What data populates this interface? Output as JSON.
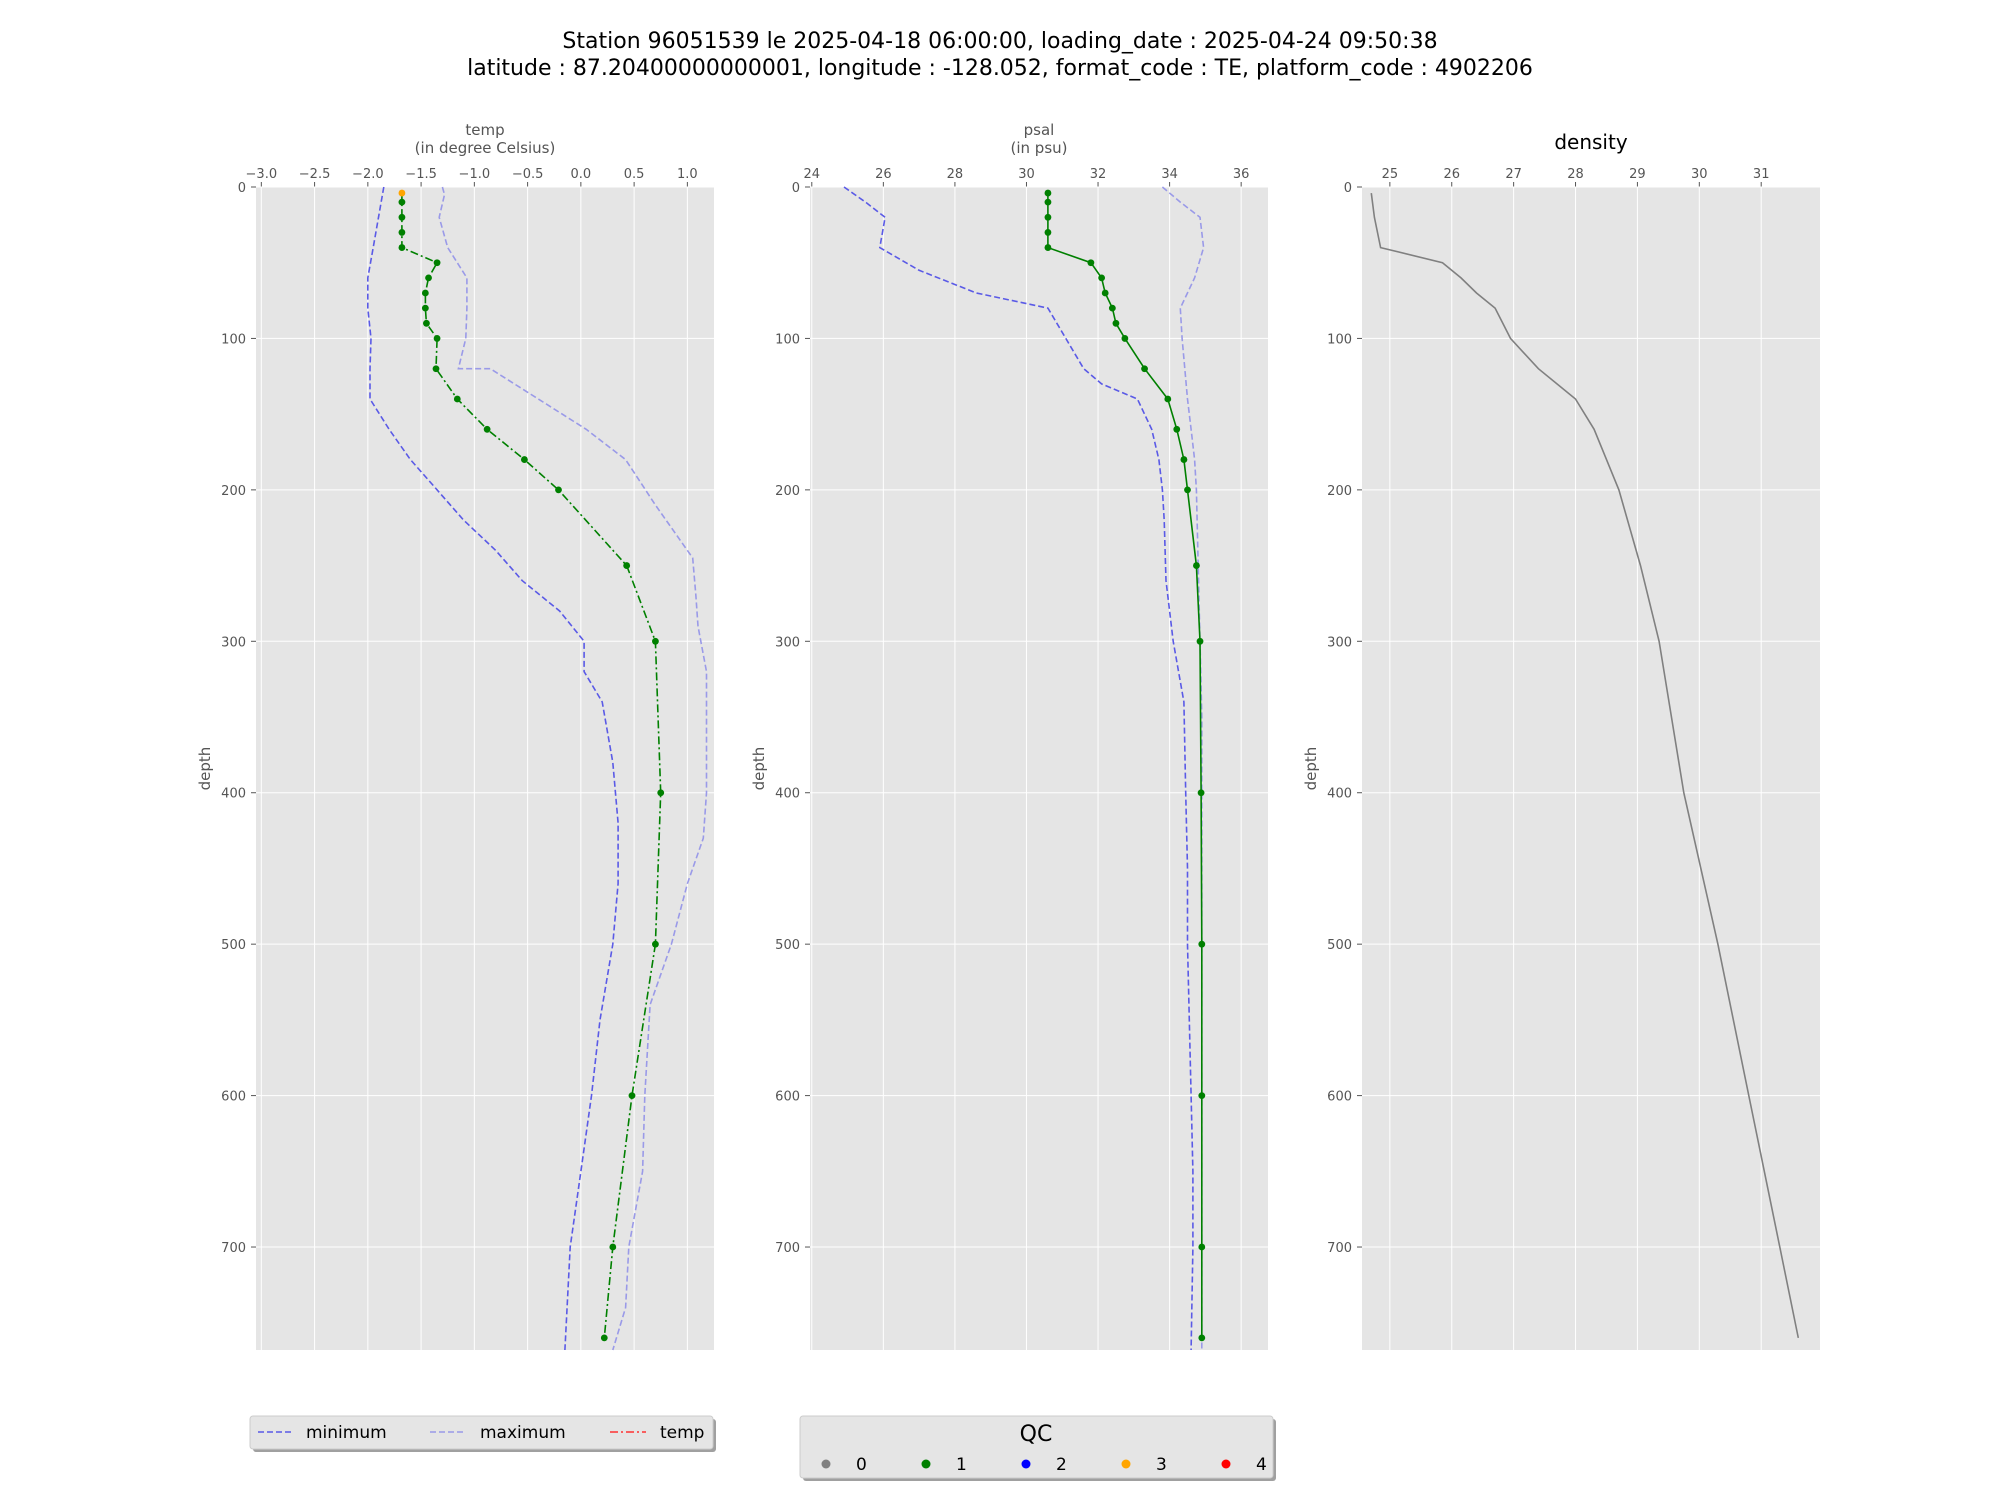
{
  "title": {
    "line1": "Station 96051539 le 2025-04-18 06:00:00, loading_date : 2025-04-24 09:50:38",
    "line2": "latitude : 87.20400000000001, longitude : -128.052, format_code : TE, platform_code : 4902206"
  },
  "colors": {
    "minimum": "#5a5ae6",
    "maximum": "#9a9ae8",
    "qc_line": "#008000",
    "density": "#808080",
    "panel_bg": "#e5e5e5",
    "grid": "#ffffff",
    "qc0": "#808080",
    "qc1": "#008000",
    "qc2": "#0000ff",
    "qc3": "#ffa500",
    "qc4": "#ff0000",
    "legend_temp": "#ff3333"
  },
  "chart_data": [
    {
      "type": "line",
      "id": "temp",
      "title": "",
      "xlabel": "temp",
      "xlabel_unit": "(in degree Celsius)",
      "ylabel": "depth",
      "xlim": [
        -3.05,
        1.25
      ],
      "ylim": [
        0,
        768
      ],
      "y_inverted": true,
      "x_axis_position": "top",
      "xticks": [
        -3.0,
        -2.5,
        -2.0,
        -1.5,
        -1.0,
        -0.5,
        0.0,
        0.5,
        1.0
      ],
      "xtick_labels": [
        "−3.0",
        "−2.5",
        "−2.0",
        "−1.5",
        "−1.0",
        "−0.5",
        "0.0",
        "0.5",
        "1.0"
      ],
      "yticks": [
        0,
        100,
        200,
        300,
        400,
        500,
        600,
        700
      ],
      "ytick_labels": [
        "0",
        "100",
        "200",
        "300",
        "400",
        "500",
        "600",
        "700"
      ],
      "grid": true,
      "series": [
        {
          "name": "minimum",
          "style": "dashed",
          "x": [
            -1.85,
            -1.9,
            -1.95,
            -2.0,
            -2.0,
            -1.97,
            -1.98,
            -1.98,
            -1.8,
            -1.6,
            -1.35,
            -1.1,
            -0.8,
            -0.55,
            -0.2,
            0.03,
            0.03,
            0.2,
            0.3,
            0.35,
            0.35,
            0.3,
            0.18,
            0.1,
            0.0,
            -0.1,
            -0.15
          ],
          "y": [
            0,
            20,
            40,
            60,
            80,
            100,
            120,
            140,
            160,
            180,
            200,
            220,
            240,
            260,
            280,
            300,
            320,
            340,
            380,
            420,
            460,
            500,
            550,
            600,
            650,
            700,
            768
          ]
        },
        {
          "name": "maximum",
          "style": "dashed",
          "x": [
            -1.3,
            -1.28,
            -1.33,
            -1.25,
            -1.07,
            -1.07,
            -1.08,
            -1.15,
            -0.85,
            -0.4,
            0.05,
            0.42,
            0.7,
            1.05,
            1.08,
            1.1,
            1.18,
            1.18,
            1.18,
            1.15,
            1.0,
            0.85,
            0.65,
            0.6,
            0.58,
            0.45,
            0.42,
            0.3
          ],
          "y": [
            0,
            5,
            20,
            40,
            60,
            80,
            100,
            120,
            120,
            140,
            160,
            180,
            210,
            245,
            270,
            290,
            320,
            350,
            400,
            430,
            460,
            500,
            540,
            600,
            650,
            700,
            740,
            768
          ]
        }
      ],
      "qc_series": {
        "name": "temp",
        "style": "dashdot",
        "points": [
          {
            "x": -1.68,
            "y": 4,
            "qc": 3
          },
          {
            "x": -1.68,
            "y": 10,
            "qc": 1
          },
          {
            "x": -1.68,
            "y": 20,
            "qc": 1
          },
          {
            "x": -1.68,
            "y": 30,
            "qc": 1
          },
          {
            "x": -1.68,
            "y": 40,
            "qc": 1
          },
          {
            "x": -1.35,
            "y": 50,
            "qc": 1
          },
          {
            "x": -1.43,
            "y": 60,
            "qc": 1
          },
          {
            "x": -1.46,
            "y": 70,
            "qc": 1
          },
          {
            "x": -1.46,
            "y": 80,
            "qc": 1
          },
          {
            "x": -1.45,
            "y": 90,
            "qc": 1
          },
          {
            "x": -1.35,
            "y": 100,
            "qc": 1
          },
          {
            "x": -1.36,
            "y": 120,
            "qc": 1
          },
          {
            "x": -1.16,
            "y": 140,
            "qc": 1
          },
          {
            "x": -0.88,
            "y": 160,
            "qc": 1
          },
          {
            "x": -0.53,
            "y": 180,
            "qc": 1
          },
          {
            "x": -0.21,
            "y": 200,
            "qc": 1
          },
          {
            "x": 0.43,
            "y": 250,
            "qc": 1
          },
          {
            "x": 0.7,
            "y": 300,
            "qc": 1
          },
          {
            "x": 0.75,
            "y": 400,
            "qc": 1
          },
          {
            "x": 0.7,
            "y": 500,
            "qc": 1
          },
          {
            "x": 0.48,
            "y": 600,
            "qc": 1
          },
          {
            "x": 0.3,
            "y": 700,
            "qc": 1
          },
          {
            "x": 0.22,
            "y": 760,
            "qc": 1
          }
        ]
      }
    },
    {
      "type": "line",
      "id": "psal",
      "title": "",
      "xlabel": "psal",
      "xlabel_unit": "(in psu)",
      "ylabel": "depth",
      "xlim": [
        23.95,
        36.75
      ],
      "ylim": [
        0,
        768
      ],
      "y_inverted": true,
      "x_axis_position": "top",
      "xticks": [
        24,
        26,
        28,
        30,
        32,
        34,
        36
      ],
      "xtick_labels": [
        "24",
        "26",
        "28",
        "30",
        "32",
        "34",
        "36"
      ],
      "yticks": [
        0,
        100,
        200,
        300,
        400,
        500,
        600,
        700
      ],
      "ytick_labels": [
        "0",
        "100",
        "200",
        "300",
        "400",
        "500",
        "600",
        "700"
      ],
      "grid": true,
      "series": [
        {
          "name": "minimum",
          "style": "dashed",
          "x": [
            24.9,
            25.5,
            26.05,
            25.9,
            27.0,
            28.6,
            30.6,
            31.1,
            31.6,
            32.1,
            33.1,
            33.5,
            33.7,
            33.8,
            33.85,
            33.9,
            34.0,
            34.1,
            34.4,
            34.45,
            34.5,
            34.5,
            34.55,
            34.6,
            34.65,
            34.65,
            34.6
          ],
          "y": [
            0,
            10,
            20,
            40,
            55,
            70,
            80,
            100,
            120,
            130,
            140,
            160,
            180,
            200,
            220,
            260,
            280,
            300,
            340,
            400,
            450,
            500,
            550,
            600,
            650,
            700,
            768
          ]
        },
        {
          "name": "maximum",
          "style": "dashed",
          "x": [
            33.8,
            34.3,
            34.85,
            34.95,
            34.7,
            34.3,
            34.35,
            34.5,
            34.6,
            34.7,
            34.75,
            34.8,
            34.85,
            34.9,
            34.9,
            34.9,
            34.9,
            34.9,
            34.9,
            34.9
          ],
          "y": [
            0,
            10,
            20,
            40,
            60,
            80,
            100,
            140,
            160,
            180,
            200,
            250,
            300,
            350,
            400,
            500,
            600,
            650,
            700,
            768
          ]
        }
      ],
      "qc_series": {
        "name": "psal",
        "style": "solid",
        "points": [
          {
            "x": 30.6,
            "y": 4,
            "qc": 1
          },
          {
            "x": 30.6,
            "y": 10,
            "qc": 1
          },
          {
            "x": 30.6,
            "y": 20,
            "qc": 1
          },
          {
            "x": 30.6,
            "y": 30,
            "qc": 1
          },
          {
            "x": 30.6,
            "y": 40,
            "qc": 1
          },
          {
            "x": 31.8,
            "y": 50,
            "qc": 1
          },
          {
            "x": 32.1,
            "y": 60,
            "qc": 1
          },
          {
            "x": 32.2,
            "y": 70,
            "qc": 1
          },
          {
            "x": 32.4,
            "y": 80,
            "qc": 1
          },
          {
            "x": 32.5,
            "y": 90,
            "qc": 1
          },
          {
            "x": 32.75,
            "y": 100,
            "qc": 1
          },
          {
            "x": 33.3,
            "y": 120,
            "qc": 1
          },
          {
            "x": 33.95,
            "y": 140,
            "qc": 1
          },
          {
            "x": 34.2,
            "y": 160,
            "qc": 1
          },
          {
            "x": 34.4,
            "y": 180,
            "qc": 1
          },
          {
            "x": 34.5,
            "y": 200,
            "qc": 1
          },
          {
            "x": 34.75,
            "y": 250,
            "qc": 1
          },
          {
            "x": 34.85,
            "y": 300,
            "qc": 1
          },
          {
            "x": 34.88,
            "y": 400,
            "qc": 1
          },
          {
            "x": 34.9,
            "y": 500,
            "qc": 1
          },
          {
            "x": 34.9,
            "y": 600,
            "qc": 1
          },
          {
            "x": 34.9,
            "y": 700,
            "qc": 1
          },
          {
            "x": 34.9,
            "y": 760,
            "qc": 1
          }
        ]
      }
    },
    {
      "type": "line",
      "id": "density",
      "title": "density",
      "xlabel": "",
      "ylabel": "depth",
      "xlim": [
        24.55,
        31.95
      ],
      "ylim": [
        0,
        768
      ],
      "y_inverted": true,
      "x_axis_position": "top",
      "xticks": [
        25,
        26,
        27,
        28,
        29,
        30,
        31
      ],
      "xtick_labels": [
        "25",
        "26",
        "27",
        "28",
        "29",
        "30",
        "31"
      ],
      "yticks": [
        0,
        100,
        200,
        300,
        400,
        500,
        600,
        700
      ],
      "ytick_labels": [
        "0",
        "100",
        "200",
        "300",
        "400",
        "500",
        "600",
        "700"
      ],
      "grid": true,
      "series": [
        {
          "name": "density",
          "style": "solid",
          "x": [
            24.7,
            24.75,
            24.85,
            25.85,
            26.15,
            26.4,
            26.7,
            26.95,
            27.4,
            28.0,
            28.3,
            28.5,
            28.7,
            29.05,
            29.35,
            29.75,
            30.3,
            30.8,
            31.3,
            31.6
          ],
          "y": [
            4,
            20,
            40,
            50,
            60,
            70,
            80,
            100,
            120,
            140,
            160,
            180,
            200,
            250,
            300,
            400,
            500,
            600,
            700,
            760
          ]
        }
      ]
    }
  ],
  "legend": {
    "items": [
      {
        "label": "minimum",
        "style": "dashed"
      },
      {
        "label": "maximum",
        "style": "dashed"
      },
      {
        "label": "temp",
        "style": "dashdot"
      }
    ]
  },
  "qc_legend": {
    "title": "QC",
    "items": [
      {
        "label": "0"
      },
      {
        "label": "1"
      },
      {
        "label": "2"
      },
      {
        "label": "3"
      },
      {
        "label": "4"
      }
    ]
  }
}
